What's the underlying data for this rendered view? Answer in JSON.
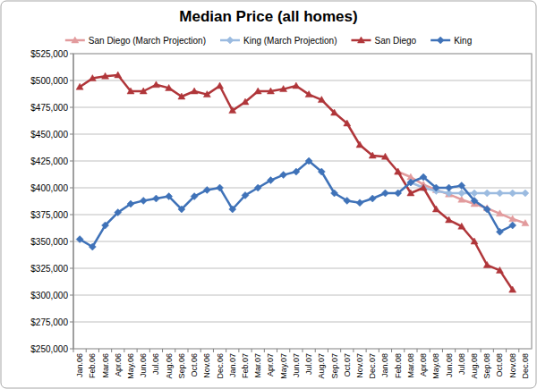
{
  "chart_data": {
    "type": "line",
    "title": "Median Price (all homes)",
    "categories": [
      "Jan.06",
      "Feb.06",
      "Mar.06",
      "Apr.06",
      "May.06",
      "Jun.06",
      "Jul.06",
      "Aug.06",
      "Sep.06",
      "Oct.06",
      "Nov.06",
      "Dec.06",
      "Jan.07",
      "Feb.07",
      "Mar.07",
      "Apr.07",
      "May.07",
      "Jun.07",
      "Jul.07",
      "Aug.07",
      "Sep.07",
      "Oct.07",
      "Nov.07",
      "Dec.07",
      "Jan.08",
      "Feb.08",
      "Mar.08",
      "Apr.08",
      "May.08",
      "Jun.08",
      "Jul.08",
      "Aug.08",
      "Sep.08",
      "Oct.08",
      "Nov.08",
      "Dec.08"
    ],
    "series": [
      {
        "name": "San Diego (March Projection)",
        "color": "#e29b9d",
        "marker": "triangle",
        "values": [
          null,
          null,
          null,
          null,
          null,
          null,
          null,
          null,
          null,
          null,
          null,
          null,
          null,
          null,
          null,
          null,
          null,
          null,
          null,
          null,
          null,
          null,
          null,
          null,
          null,
          415000,
          410000,
          403000,
          398000,
          394000,
          389000,
          385000,
          381000,
          376000,
          371000,
          367000
        ]
      },
      {
        "name": "King (March Projection)",
        "color": "#9bbbe0",
        "marker": "diamond",
        "values": [
          null,
          null,
          null,
          null,
          null,
          null,
          null,
          null,
          null,
          null,
          null,
          null,
          null,
          null,
          null,
          null,
          null,
          null,
          null,
          null,
          null,
          null,
          null,
          null,
          null,
          null,
          405000,
          400000,
          397000,
          395000,
          395000,
          395000,
          395000,
          395000,
          395000,
          395000
        ]
      },
      {
        "name": "San Diego",
        "color": "#b0363a",
        "marker": "triangle",
        "values": [
          494000,
          502000,
          504000,
          505000,
          490000,
          490000,
          496000,
          493000,
          485000,
          490000,
          487000,
          495000,
          472000,
          480000,
          490000,
          490000,
          492000,
          495000,
          487000,
          482000,
          470000,
          460000,
          440000,
          430000,
          429000,
          415000,
          395000,
          400000,
          380000,
          370000,
          364000,
          350000,
          328000,
          323000,
          305000,
          null
        ]
      },
      {
        "name": "King",
        "color": "#3f72b8",
        "marker": "diamond",
        "values": [
          352000,
          345000,
          365000,
          377000,
          385000,
          388000,
          390000,
          392000,
          380000,
          392000,
          398000,
          400000,
          380000,
          393000,
          400000,
          407000,
          412000,
          415000,
          425000,
          415000,
          395000,
          388000,
          386000,
          390000,
          395000,
          395000,
          405000,
          410000,
          400000,
          400000,
          402000,
          388000,
          380000,
          359000,
          365000,
          null
        ]
      }
    ],
    "ylim": [
      250000,
      525000
    ],
    "yticks": [
      {
        "value": 250000,
        "label": "$250,000"
      },
      {
        "value": 275000,
        "label": "$275,000"
      },
      {
        "value": 300000,
        "label": "$300,000"
      },
      {
        "value": 325000,
        "label": "$325,000"
      },
      {
        "value": 350000,
        "label": "$350,000"
      },
      {
        "value": 375000,
        "label": "$375,000"
      },
      {
        "value": 400000,
        "label": "$400,000"
      },
      {
        "value": 425000,
        "label": "$425,000"
      },
      {
        "value": 450000,
        "label": "$450,000"
      },
      {
        "value": 475000,
        "label": "$475,000"
      },
      {
        "value": 500000,
        "label": "$500,000"
      },
      {
        "value": 525000,
        "label": "$525,000"
      }
    ],
    "grid": true,
    "legend": "top"
  }
}
